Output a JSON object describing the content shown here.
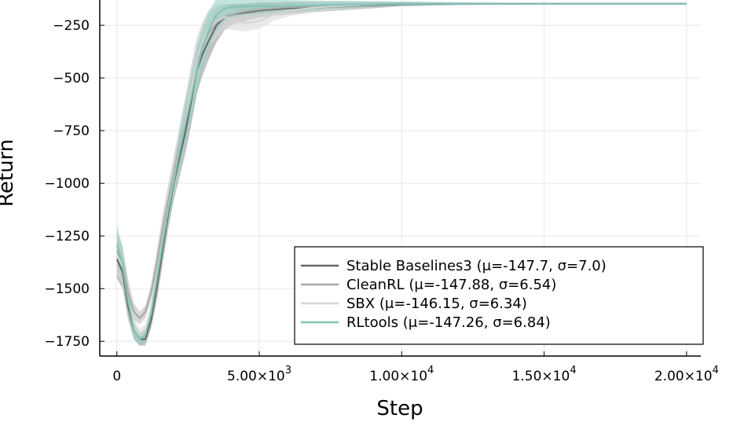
{
  "chart_data": {
    "type": "line",
    "title": "",
    "xlabel": "Step",
    "ylabel": "Return",
    "xlim": [
      -600,
      20500
    ],
    "ylim": [
      -1820,
      -130
    ],
    "grid": true,
    "legend_position": "bottom-right",
    "x_ticks": [
      {
        "value": 0,
        "label": "0"
      },
      {
        "value": 5000,
        "label": "5.00×10",
        "exp": "3"
      },
      {
        "value": 10000,
        "label": "1.00×10",
        "exp": "4"
      },
      {
        "value": 15000,
        "label": "1.50×10",
        "exp": "4"
      },
      {
        "value": 20000,
        "label": "2.00×10",
        "exp": "4"
      }
    ],
    "y_ticks": [
      {
        "value": -250,
        "label": "−250"
      },
      {
        "value": -500,
        "label": "−500"
      },
      {
        "value": -750,
        "label": "−750"
      },
      {
        "value": -1000,
        "label": "−1000"
      },
      {
        "value": -1250,
        "label": "−1250"
      },
      {
        "value": -1500,
        "label": "−1500"
      },
      {
        "value": -1750,
        "label": "−1750"
      }
    ],
    "series": [
      {
        "name": "Stable Baselines3 (μ=-147.7, σ=7.0)",
        "color": "#666666",
        "band_color": "#9a9a9a",
        "band_opacity": 0.6,
        "x": [
          0,
          200,
          400,
          600,
          800,
          1000,
          1200,
          1400,
          1600,
          1800,
          2000,
          2200,
          2400,
          2600,
          2800,
          3000,
          3200,
          3500,
          3800,
          4000,
          4500,
          5000,
          5500,
          6000,
          7000,
          8000,
          9000,
          10000,
          12000,
          14000,
          16000,
          18000,
          20000
        ],
        "y": [
          -1360,
          -1420,
          -1590,
          -1700,
          -1740,
          -1740,
          -1650,
          -1500,
          -1320,
          -1150,
          -1000,
          -880,
          -760,
          -620,
          -470,
          -390,
          -330,
          -250,
          -210,
          -200,
          -190,
          -180,
          -175,
          -170,
          -165,
          -160,
          -155,
          -150,
          -148,
          -148,
          -148,
          -148,
          -148
        ],
        "spread": [
          90,
          80,
          60,
          40,
          30,
          30,
          40,
          60,
          70,
          70,
          80,
          90,
          100,
          110,
          110,
          100,
          90,
          80,
          60,
          50,
          40,
          35,
          30,
          28,
          22,
          18,
          14,
          10,
          6,
          4,
          3,
          3,
          3
        ]
      },
      {
        "name": "CleanRL (μ=-147.88, σ=6.54)",
        "color": "#a8a8a8",
        "band_color": "#bcbcbc",
        "band_opacity": 0.6,
        "x": [
          0,
          200,
          400,
          600,
          800,
          1000,
          1200,
          1400,
          1600,
          1800,
          2000,
          2200,
          2400,
          2600,
          2800,
          3000,
          3200,
          3500,
          3800,
          4000,
          4500,
          5000,
          5500,
          6000,
          7000,
          8000,
          9000,
          10000,
          12000,
          14000,
          16000,
          18000,
          20000
        ],
        "y": [
          -1320,
          -1380,
          -1520,
          -1610,
          -1640,
          -1610,
          -1520,
          -1380,
          -1220,
          -1080,
          -950,
          -820,
          -690,
          -560,
          -430,
          -350,
          -290,
          -240,
          -210,
          -200,
          -185,
          -175,
          -170,
          -165,
          -160,
          -155,
          -150,
          -148,
          -148,
          -148,
          -148,
          -148,
          -148
        ],
        "spread": [
          90,
          80,
          60,
          40,
          30,
          30,
          40,
          60,
          70,
          70,
          80,
          90,
          100,
          110,
          110,
          100,
          90,
          80,
          60,
          50,
          40,
          35,
          30,
          28,
          22,
          18,
          14,
          10,
          6,
          4,
          3,
          3,
          3
        ]
      },
      {
        "name": "SBX (μ=-146.15, σ=6.34)",
        "color": "#d4d4d4",
        "band_color": "#dcdcdc",
        "band_opacity": 0.6,
        "x": [
          0,
          200,
          400,
          600,
          800,
          1000,
          1200,
          1400,
          1600,
          1800,
          2000,
          2200,
          2400,
          2600,
          2800,
          3000,
          3200,
          3500,
          3800,
          4000,
          4500,
          5000,
          5500,
          6000,
          7000,
          8000,
          9000,
          10000,
          12000,
          14000,
          16000,
          18000,
          20000
        ],
        "y": [
          -1340,
          -1390,
          -1560,
          -1680,
          -1720,
          -1700,
          -1610,
          -1450,
          -1280,
          -1120,
          -980,
          -840,
          -700,
          -560,
          -420,
          -330,
          -270,
          -230,
          -210,
          -220,
          -240,
          -230,
          -200,
          -180,
          -165,
          -158,
          -152,
          -148,
          -146,
          -146,
          -146,
          -146,
          -146
        ],
        "spread": [
          90,
          80,
          60,
          40,
          30,
          30,
          40,
          60,
          70,
          70,
          80,
          90,
          100,
          110,
          110,
          100,
          90,
          80,
          60,
          50,
          40,
          35,
          30,
          28,
          22,
          18,
          14,
          10,
          6,
          4,
          3,
          3,
          3
        ]
      },
      {
        "name": "RLtools (μ=-147.26, σ=6.84)",
        "color": "#7fc4b5",
        "band_color": "#93cec2",
        "band_opacity": 0.55,
        "x": [
          0,
          200,
          400,
          600,
          800,
          1000,
          1200,
          1400,
          1600,
          1800,
          2000,
          2200,
          2400,
          2600,
          2800,
          3000,
          3200,
          3500,
          3800,
          4000,
          4500,
          5000,
          5500,
          6000,
          7000,
          8000,
          9000,
          10000,
          12000,
          14000,
          16000,
          18000,
          20000
        ],
        "y": [
          -1290,
          -1380,
          -1560,
          -1700,
          -1740,
          -1720,
          -1620,
          -1460,
          -1290,
          -1130,
          -990,
          -850,
          -720,
          -600,
          -470,
          -360,
          -280,
          -200,
          -170,
          -165,
          -160,
          -160,
          -160,
          -158,
          -155,
          -152,
          -150,
          -148,
          -147,
          -147,
          -147,
          -147,
          -147
        ],
        "spread": [
          90,
          80,
          60,
          40,
          30,
          30,
          40,
          60,
          70,
          70,
          80,
          90,
          100,
          110,
          110,
          100,
          90,
          80,
          60,
          50,
          40,
          35,
          30,
          28,
          22,
          18,
          14,
          10,
          6,
          4,
          3,
          3,
          3
        ]
      }
    ]
  }
}
